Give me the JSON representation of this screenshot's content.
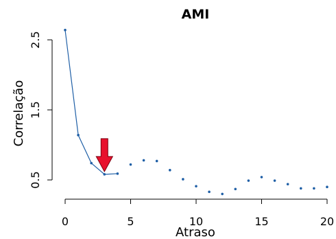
{
  "chart_data": {
    "type": "line",
    "title": "AMI",
    "xlabel": "Atraso",
    "ylabel": "Correlação",
    "xlim": [
      0,
      20
    ],
    "ylim": [
      0.3,
      2.7
    ],
    "xticks": [
      0,
      5,
      10,
      15,
      20
    ],
    "yticks": [
      0.5,
      1.5,
      2.5
    ],
    "xtick_labels": [
      "0",
      "5",
      "10",
      "15",
      "20"
    ],
    "ytick_labels": [
      "0.5",
      "1.5",
      "2.5"
    ],
    "grid": false,
    "series": [
      {
        "x": [
          0,
          1,
          2,
          3,
          4,
          5,
          6,
          7,
          8,
          9,
          10,
          11,
          12,
          13,
          14,
          15,
          16,
          17,
          18,
          19,
          20
        ],
        "y": [
          2.64,
          1.14,
          0.74,
          0.58,
          0.59,
          0.72,
          0.78,
          0.77,
          0.64,
          0.51,
          0.41,
          0.33,
          0.3,
          0.37,
          0.49,
          0.54,
          0.49,
          0.44,
          0.38,
          0.38,
          0.4
        ],
        "line_segments_between": [
          [
            0,
            1
          ],
          [
            1,
            2
          ],
          [
            2,
            3
          ],
          [
            3,
            4
          ]
        ],
        "color": "#1f5fa6"
      }
    ],
    "annotation": {
      "type": "arrow-down",
      "x": 3,
      "y": 0.58,
      "color": "#e8112d"
    }
  }
}
